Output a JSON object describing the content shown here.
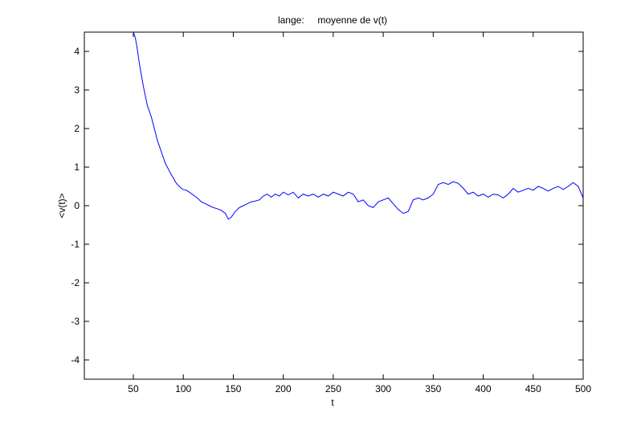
{
  "chart_data": {
    "type": "line",
    "title": "lange:     moyenne de v(t)",
    "xlabel": "t",
    "ylabel": "<v(t)>",
    "xlim": [
      1,
      500
    ],
    "ylim": [
      -4.5,
      4.5
    ],
    "xticks": [
      50,
      100,
      150,
      200,
      250,
      300,
      350,
      400,
      450,
      500
    ],
    "yticks": [
      4,
      3,
      2,
      1,
      0,
      -1,
      -2,
      -3,
      -4
    ],
    "grid": false,
    "line_color": "#0000ff",
    "series": [
      {
        "values_x": [
          50,
          52,
          54,
          56,
          58,
          60,
          62,
          64,
          66,
          68,
          70,
          72,
          74,
          76,
          78,
          80,
          82,
          84,
          86,
          88,
          90,
          92,
          94,
          96,
          98,
          100,
          103,
          106,
          110,
          114,
          118,
          122,
          126,
          130,
          134,
          138,
          142,
          145,
          148,
          152,
          156,
          160,
          164,
          168,
          172,
          176,
          180,
          184,
          188,
          192,
          196,
          200,
          205,
          210,
          215,
          220,
          225,
          230,
          235,
          240,
          245,
          250,
          255,
          260,
          265,
          270,
          275,
          280,
          285,
          290,
          295,
          300,
          305,
          310,
          315,
          320,
          325,
          330,
          335,
          340,
          345,
          350,
          355,
          360,
          365,
          370,
          375,
          380,
          385,
          390,
          395,
          400,
          405,
          410,
          415,
          420,
          425,
          430,
          435,
          440,
          445,
          450,
          455,
          460,
          465,
          470,
          475,
          480,
          485,
          490,
          495,
          500
        ],
        "values_y": [
          4.5,
          4.35,
          4.05,
          3.7,
          3.4,
          3.1,
          2.85,
          2.6,
          2.45,
          2.3,
          2.1,
          1.9,
          1.7,
          1.55,
          1.4,
          1.25,
          1.1,
          1.0,
          0.9,
          0.8,
          0.72,
          0.62,
          0.55,
          0.5,
          0.45,
          0.42,
          0.4,
          0.35,
          0.28,
          0.2,
          0.1,
          0.05,
          0.0,
          -0.05,
          -0.08,
          -0.12,
          -0.2,
          -0.35,
          -0.3,
          -0.15,
          -0.05,
          0.0,
          0.05,
          0.1,
          0.12,
          0.15,
          0.25,
          0.3,
          0.22,
          0.3,
          0.25,
          0.35,
          0.28,
          0.35,
          0.2,
          0.3,
          0.25,
          0.3,
          0.22,
          0.3,
          0.25,
          0.35,
          0.3,
          0.25,
          0.35,
          0.3,
          0.1,
          0.15,
          0.0,
          -0.05,
          0.1,
          0.15,
          0.2,
          0.05,
          -0.1,
          -0.2,
          -0.15,
          0.15,
          0.2,
          0.15,
          0.2,
          0.3,
          0.55,
          0.6,
          0.55,
          0.62,
          0.58,
          0.45,
          0.3,
          0.35,
          0.25,
          0.3,
          0.22,
          0.3,
          0.28,
          0.2,
          0.3,
          0.45,
          0.35,
          0.4,
          0.45,
          0.4,
          0.5,
          0.45,
          0.38,
          0.45,
          0.5,
          0.42,
          0.5,
          0.6,
          0.5,
          0.2
        ]
      }
    ]
  }
}
